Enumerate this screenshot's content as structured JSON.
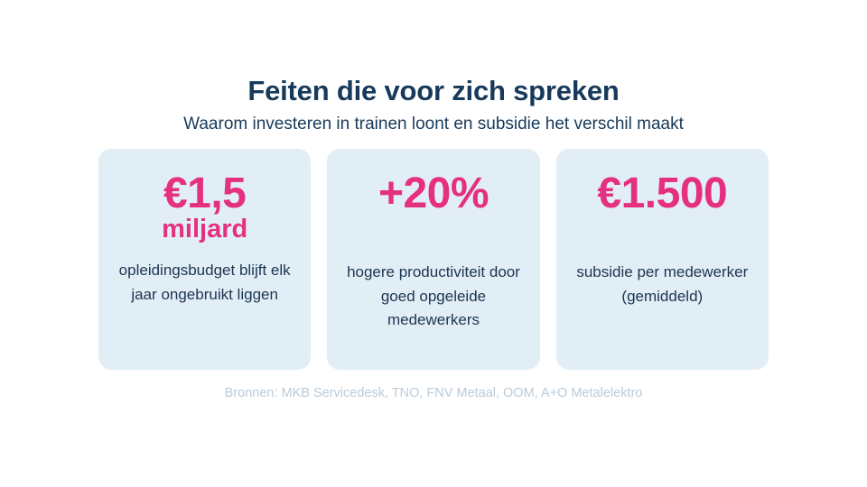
{
  "header": {
    "title": "Feiten die voor zich spreken",
    "subtitle": "Waarom investeren in trainen loont en subsidie het verschil maakt"
  },
  "cards": [
    {
      "value": "€1,5",
      "value_sub": "miljard",
      "description": "opleidingsbudget blijft elk jaar ongebruikt liggen"
    },
    {
      "value": "+20%",
      "description": "hogere productiviteit door goed opgeleide medewerkers"
    },
    {
      "value": "€1.500",
      "description": "subsidie per medewerker (gemiddeld)"
    }
  ],
  "sources": "Bronnen: MKB Servicedesk, TNO, FNV Metaal, OOM, A+O Metalelektro",
  "colors": {
    "title": "#173a5a",
    "accent": "#e5307f",
    "card_background": "#e2eef6",
    "sources_text": "#bccbd8"
  }
}
